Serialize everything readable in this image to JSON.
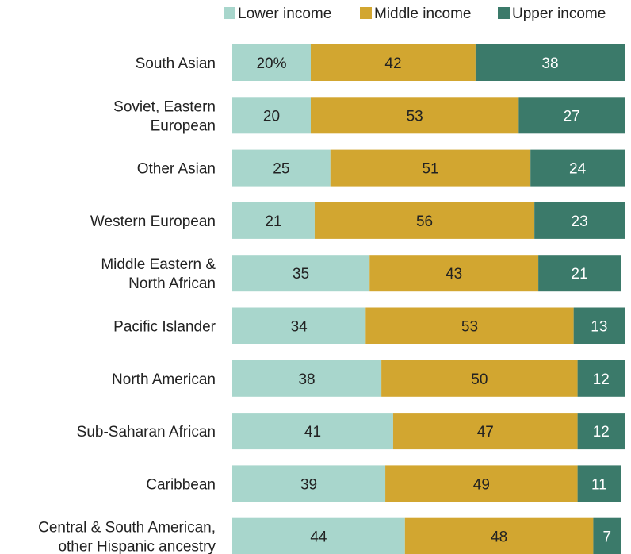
{
  "chart_data": {
    "type": "bar",
    "orientation": "horizontal",
    "stacked": true,
    "title": "",
    "xlabel": "",
    "ylabel": "",
    "xlim": [
      0,
      100
    ],
    "grid": false,
    "legend_placement": "top-right",
    "value_suffix_first": "%",
    "categories": [
      [
        "South Asian"
      ],
      [
        "Soviet, Eastern",
        "European"
      ],
      [
        "Other Asian"
      ],
      [
        "Western European"
      ],
      [
        "Middle Eastern &",
        "North African"
      ],
      [
        "Pacific Islander"
      ],
      [
        "North American"
      ],
      [
        "Sub-Saharan African"
      ],
      [
        "Caribbean"
      ],
      [
        "Central & South American,",
        "other Hispanic ancestry"
      ]
    ],
    "series": [
      {
        "name": "Lower income",
        "color": "#a8d6cc",
        "text_color": "#222222",
        "values": [
          20,
          20,
          25,
          21,
          35,
          34,
          38,
          41,
          39,
          44
        ]
      },
      {
        "name": "Middle income",
        "color": "#d2a630",
        "text_color": "#222222",
        "values": [
          42,
          53,
          51,
          56,
          43,
          53,
          50,
          47,
          49,
          48
        ]
      },
      {
        "name": "Upper income",
        "color": "#3b7a6a",
        "text_color": "#ffffff",
        "values": [
          38,
          27,
          24,
          23,
          21,
          13,
          12,
          12,
          11,
          7
        ]
      }
    ]
  }
}
